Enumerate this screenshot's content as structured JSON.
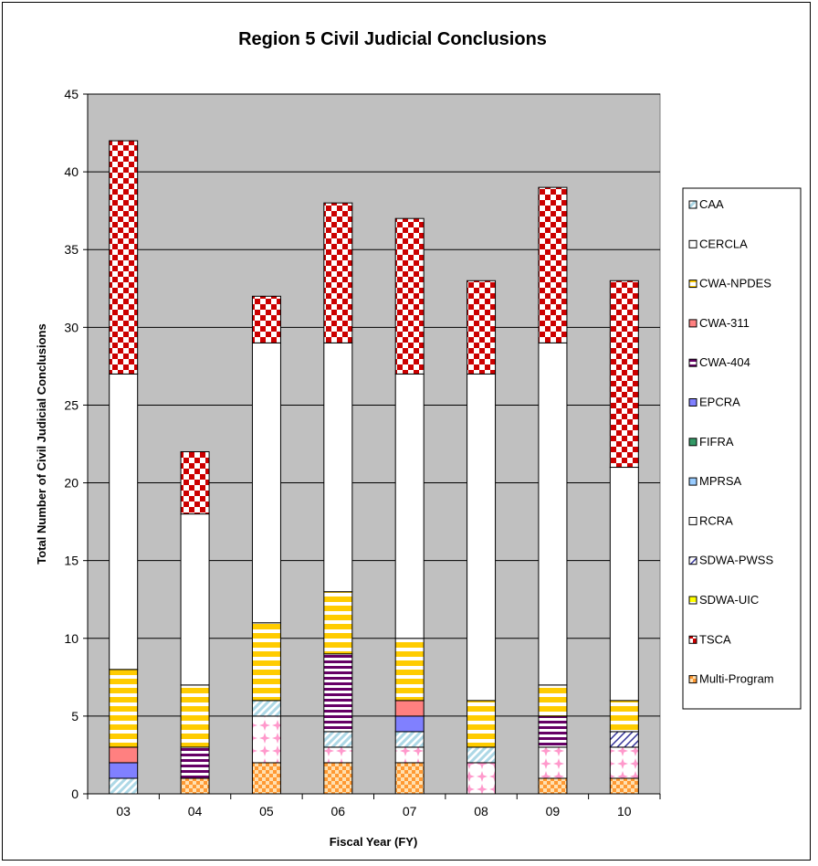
{
  "colors": {
    "plot_background": "#c0c0c0",
    "CAA": "#add8e6",
    "CERCLA": "#ff99cc",
    "CWA-NPDES": "#ffcc00",
    "CWA-311": "#ff8080",
    "CWA-404": "#660066",
    "EPCRA": "#8080ff",
    "FIFRA": "#339966",
    "MPRSA": "#99ccff",
    "RCRA": "#ffffff",
    "SDWA-PWSS": "#333399",
    "SDWA-UIC": "#ffff00",
    "TSCA": "#cc0000",
    "Multi-Program": "#ff9933"
  },
  "chart_data": {
    "type": "bar",
    "stacked": true,
    "title": "Region 5 Civil Judicial Conclusions",
    "xlabel": "Fiscal Year (FY)",
    "ylabel": "Total Number of Civil Judicial Conclusions",
    "ylim": [
      0,
      45
    ],
    "yticks": [
      "0",
      "5",
      "10",
      "15",
      "20",
      "25",
      "30",
      "35",
      "40",
      "45"
    ],
    "grid": true,
    "legend_position": "right",
    "categories": [
      "03",
      "04",
      "05",
      "06",
      "07",
      "08",
      "09",
      "10"
    ],
    "series": [
      {
        "name": "Multi-Program",
        "values": [
          0,
          1,
          2,
          2,
          2,
          0,
          1,
          1
        ]
      },
      {
        "name": "CERCLA",
        "values": [
          0,
          0,
          3,
          1,
          1,
          2,
          2,
          2
        ]
      },
      {
        "name": "CAA",
        "values": [
          1,
          0,
          1,
          1,
          1,
          1,
          0,
          0
        ]
      },
      {
        "name": "SDWA-PWSS",
        "values": [
          0,
          0,
          0,
          0,
          0,
          0,
          0,
          1
        ]
      },
      {
        "name": "EPCRA",
        "values": [
          1,
          0,
          0,
          0,
          1,
          0,
          0,
          0
        ]
      },
      {
        "name": "CWA-311",
        "values": [
          1,
          0,
          0,
          0,
          1,
          0,
          0,
          0
        ]
      },
      {
        "name": "CWA-404",
        "values": [
          0,
          2,
          0,
          5,
          0,
          0,
          2,
          0
        ]
      },
      {
        "name": "CWA-NPDES",
        "values": [
          5,
          4,
          5,
          4,
          4,
          3,
          2,
          2
        ]
      },
      {
        "name": "RCRA",
        "values": [
          19,
          11,
          18,
          16,
          17,
          21,
          22,
          15
        ]
      },
      {
        "name": "TSCA",
        "values": [
          15,
          4,
          3,
          9,
          10,
          6,
          10,
          12
        ]
      }
    ],
    "legend": [
      "CAA",
      "CERCLA",
      "CWA-NPDES",
      "CWA-311",
      "CWA-404",
      "EPCRA",
      "FIFRA",
      "MPRSA",
      "RCRA",
      "SDWA-PWSS",
      "SDWA-UIC",
      "TSCA",
      "Multi-Program"
    ]
  }
}
